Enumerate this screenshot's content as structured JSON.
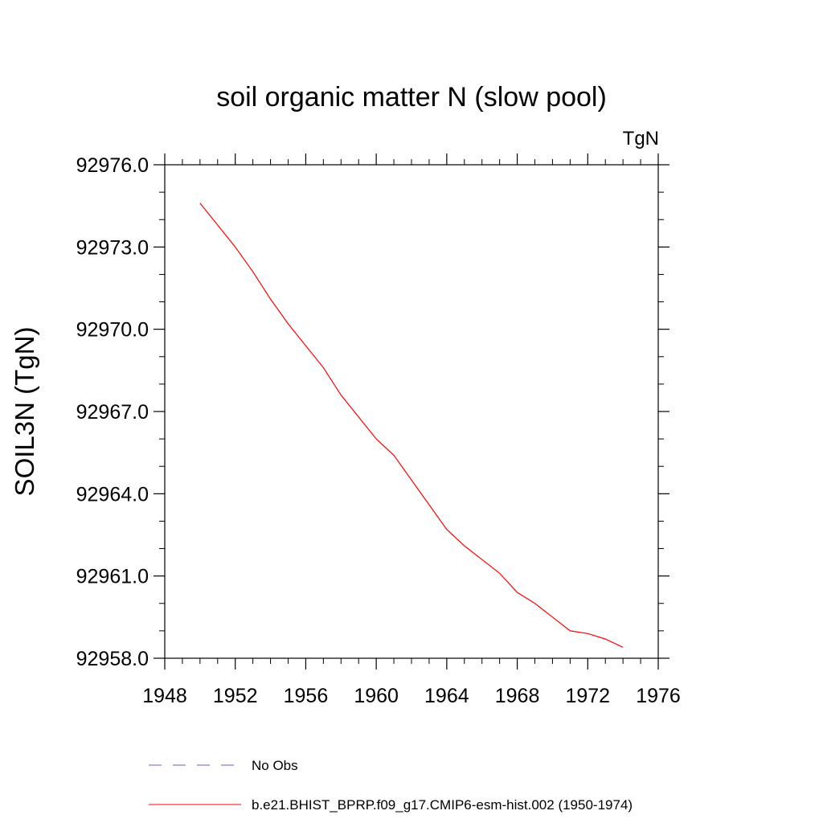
{
  "chart_data": {
    "type": "line",
    "title": "soil organic matter N (slow pool)",
    "units_label": "TgN",
    "xlabel": "",
    "ylabel": "SOIL3N  (TgN)",
    "xlim": [
      1948,
      1976
    ],
    "ylim": [
      92958.0,
      92976.0
    ],
    "x_ticks": [
      1948,
      1952,
      1956,
      1960,
      1964,
      1968,
      1972,
      1976
    ],
    "x_tick_labels": [
      "1948",
      "1952",
      "1956",
      "1960",
      "1964",
      "1968",
      "1972",
      "1976"
    ],
    "y_ticks": [
      92958.0,
      92961.0,
      92964.0,
      92967.0,
      92970.0,
      92973.0,
      92976.0
    ],
    "y_tick_labels": [
      "92958.0",
      "92961.0",
      "92964.0",
      "92967.0",
      "92970.0",
      "92973.0",
      "92976.0"
    ],
    "x_minor_step": 1,
    "y_minor_step": 1,
    "grid": false,
    "legend_position": "bottom",
    "series": [
      {
        "name": "No Obs",
        "color": "#6a5acd",
        "dash": "dashed",
        "x": [],
        "y": []
      },
      {
        "name": "b.e21.BHIST_BPRP.f09_g17.CMIP6-esm-hist.002 (1950-1974)",
        "color": "#ff0000",
        "dash": "solid",
        "x": [
          1950,
          1951,
          1952,
          1953,
          1954,
          1955,
          1956,
          1957,
          1958,
          1959,
          1960,
          1961,
          1962,
          1963,
          1964,
          1965,
          1966,
          1967,
          1968,
          1969,
          1970,
          1971,
          1972,
          1973,
          1974
        ],
        "y": [
          92974.6,
          92973.8,
          92973.0,
          92972.1,
          92971.1,
          92970.2,
          92969.4,
          92968.6,
          92967.6,
          92966.8,
          92966.0,
          92965.4,
          92964.5,
          92963.6,
          92962.7,
          92962.1,
          92961.6,
          92961.1,
          92960.4,
          92960.0,
          92959.5,
          92959.0,
          92958.9,
          92958.7,
          92958.4
        ]
      }
    ]
  }
}
